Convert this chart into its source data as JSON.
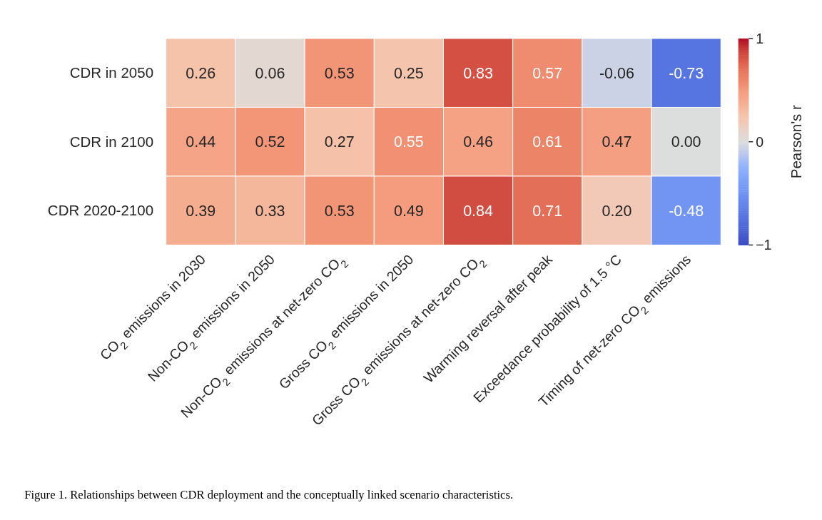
{
  "chart_data": {
    "type": "heatmap",
    "categories": [
      "CO$_{2}$ emissions in 2030",
      "Non-CO$_{2}$ emissions in 2050",
      "Non-CO$_{2}$ emissions at net-zero CO$_{2}$",
      "Gross CO$_{2}$ emissions in 2050",
      "Gross CO$_{2}$ emissions at net-zero CO$_{2}$",
      "Warming reversal after peak",
      "Exceedance probability of 1.5 °C",
      "Timing of net-zero CO$_{2}$ emissions"
    ],
    "y_categories": [
      "CDR in 2050",
      "CDR in 2100",
      "CDR 2020-2100"
    ],
    "cells": [
      [
        0.26,
        0.06,
        0.53,
        0.25,
        0.83,
        0.57,
        -0.06,
        -0.73
      ],
      [
        0.44,
        0.52,
        0.27,
        0.55,
        0.46,
        0.61,
        0.47,
        0.0
      ],
      [
        0.39,
        0.33,
        0.53,
        0.49,
        0.84,
        0.71,
        0.2,
        -0.48
      ]
    ],
    "cell_labels": [
      [
        "0.26",
        "0.06",
        "0.53",
        "0.25",
        "0.83",
        "0.57",
        "-0.06",
        "-0.73"
      ],
      [
        "0.44",
        "0.52",
        "0.27",
        "0.55",
        "0.46",
        "0.61",
        "0.47",
        "0.00"
      ],
      [
        "0.39",
        "0.33",
        "0.53",
        "0.49",
        "0.84",
        "0.71",
        "0.20",
        "-0.48"
      ]
    ],
    "clim": [
      -1,
      1
    ],
    "cticks": [
      {
        "value": -1,
        "label": "−1"
      },
      0,
      1
    ],
    "clabel": "Pearson's r",
    "annotations": [
      "Figure 1. Relationships between CDR deployment and the conceptually linked scenario characteristics."
    ]
  }
}
